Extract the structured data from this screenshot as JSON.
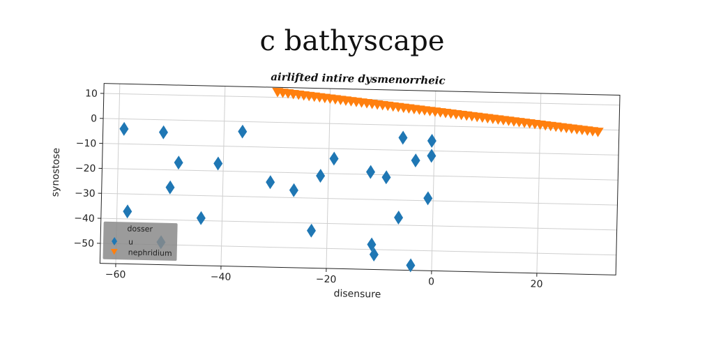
{
  "title": "c bathyscape",
  "chart_data": {
    "type": "scatter",
    "title": "airlifted intire dysmenorrheic",
    "xlabel": "disensure",
    "ylabel": "synostose",
    "xlim": [
      -63,
      35
    ],
    "ylim": [
      -58,
      14
    ],
    "xticks": [
      -60,
      -40,
      -20,
      0,
      20
    ],
    "yticks": [
      10,
      0,
      -10,
      -20,
      -30,
      -40,
      -50
    ],
    "grid": true,
    "legend": {
      "title": "dosser",
      "placement": "lower-left"
    },
    "series": [
      {
        "name": "u",
        "marker": "thin-diamond",
        "color": "#1f77b4",
        "points": [
          [
            -59,
            -4
          ],
          [
            -51.5,
            -5
          ],
          [
            -36.5,
            -4
          ],
          [
            -48.5,
            -17
          ],
          [
            -41,
            -17
          ],
          [
            -50,
            -27
          ],
          [
            -31,
            -24
          ],
          [
            -26.5,
            -27
          ],
          [
            -21.5,
            -21
          ],
          [
            -19,
            -14
          ],
          [
            -12,
            -19
          ],
          [
            -9,
            -21
          ],
          [
            -6,
            -5
          ],
          [
            -3.5,
            -14
          ],
          [
            -0.5,
            -6
          ],
          [
            -0.5,
            -12
          ],
          [
            -58,
            -37
          ],
          [
            -44,
            -39
          ],
          [
            -23,
            -43
          ],
          [
            -6.5,
            -37
          ],
          [
            -1,
            -29
          ],
          [
            -11.5,
            -48
          ],
          [
            -11,
            -52
          ],
          [
            -51.5,
            -49
          ],
          [
            -4,
            -56
          ]
        ]
      },
      {
        "name": "nephridium",
        "marker": "triangle-down",
        "color": "#ff7f0e",
        "line": {
          "x_start": -30,
          "x_end": 31,
          "count": 62,
          "y_start": 12,
          "y_end": -1
        }
      }
    ]
  }
}
